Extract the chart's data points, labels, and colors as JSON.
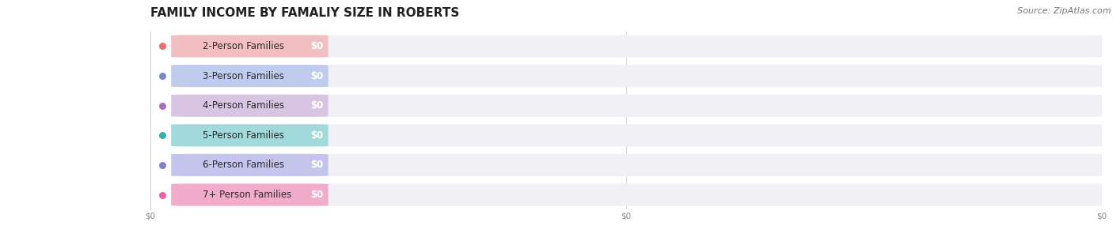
{
  "title": "FAMILY INCOME BY FAMALIY SIZE IN ROBERTS",
  "source": "Source: ZipAtlas.com",
  "categories": [
    "2-Person Families",
    "3-Person Families",
    "4-Person Families",
    "5-Person Families",
    "6-Person Families",
    "7+ Person Families"
  ],
  "values": [
    0,
    0,
    0,
    0,
    0,
    0
  ],
  "bar_colors": [
    "#f4a0a0",
    "#a0b4e8",
    "#c9a8d8",
    "#6dccc8",
    "#a8a8e8",
    "#f480b0"
  ],
  "circle_colors": [
    "#e87070",
    "#7888d0",
    "#a870c0",
    "#38b0b0",
    "#8080d0",
    "#f060a0"
  ],
  "value_labels": [
    "$0",
    "$0",
    "$0",
    "$0",
    "$0",
    "$0"
  ],
  "x_tick_labels": [
    "$0",
    "$0",
    "$0"
  ],
  "background_color": "#ffffff",
  "bar_bg_color": "#f0f0f5",
  "title_fontsize": 11,
  "label_fontsize": 8.5,
  "source_fontsize": 8
}
